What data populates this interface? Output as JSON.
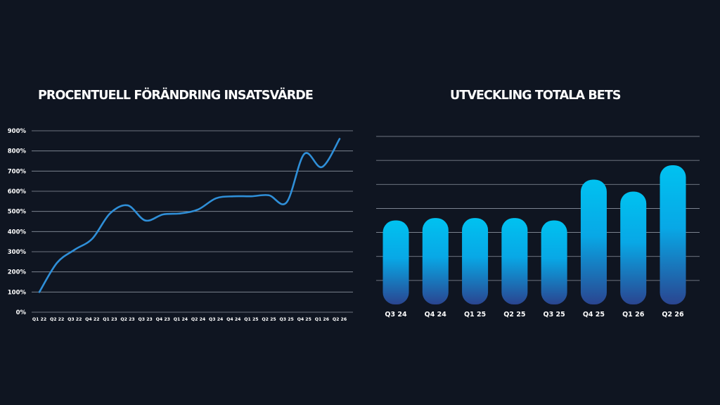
{
  "chart_data": [
    {
      "type": "line",
      "title": "PROCENTUELL FÖRÄNDRING INSATSVÄRDE",
      "xlabel": "",
      "ylabel": "",
      "categories": [
        "Q1 22",
        "Q2 22",
        "Q3 22",
        "Q4 22",
        "Q1 23",
        "Q2 23",
        "Q3 23",
        "Q4 23",
        "Q1 24",
        "Q2 24",
        "Q3 24",
        "Q4 24",
        "Q1 25",
        "Q2 25",
        "Q3 25",
        "Q4 25",
        "Q1 26",
        "Q2 26"
      ],
      "values": [
        100,
        245,
        310,
        365,
        490,
        530,
        455,
        485,
        490,
        510,
        565,
        575,
        575,
        580,
        545,
        785,
        720,
        860
      ],
      "yticks": [
        "0%",
        "100%",
        "200%",
        "300%",
        "400%",
        "500%",
        "600%",
        "700%",
        "800%",
        "900%"
      ],
      "ylim": [
        0,
        900
      ],
      "grid": true,
      "color": "#2f8fd8"
    },
    {
      "type": "bar",
      "title": "UTVECKLING TOTALA BETS",
      "xlabel": "",
      "ylabel": "",
      "categories": [
        "Q3 24",
        "Q4 24",
        "Q1 25",
        "Q2 25",
        "Q3 25",
        "Q4 25",
        "Q1 26",
        "Q2 26"
      ],
      "values": [
        3.5,
        3.6,
        3.6,
        3.6,
        3.5,
        5.2,
        4.7,
        5.8
      ],
      "ylim": [
        0,
        7
      ],
      "grid": true,
      "colors": {
        "top": "#00c2f0",
        "bottom": "#2a4590"
      }
    }
  ]
}
